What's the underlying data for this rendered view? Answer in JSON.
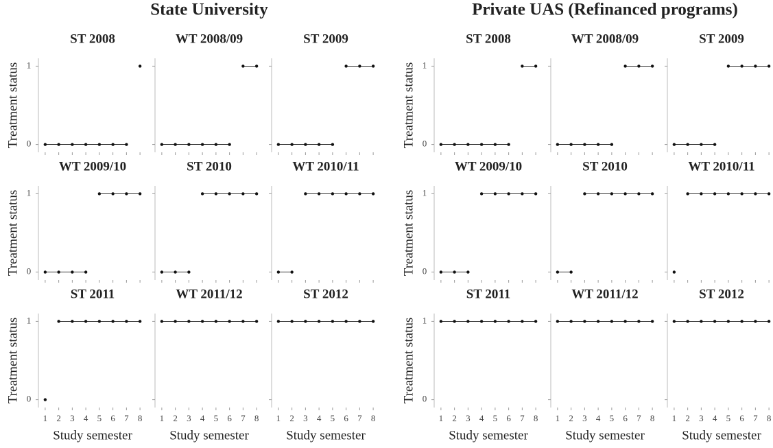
{
  "chart_data": [
    {
      "type": "line",
      "title": "State University",
      "xlabel": "Study semester",
      "ylabel": "Treatment status",
      "x": [
        1,
        2,
        3,
        4,
        5,
        6,
        7,
        8
      ],
      "xlim": [
        0.5,
        8.5
      ],
      "ylim": [
        -0.1,
        1.1
      ],
      "xticks": [
        1,
        2,
        3,
        4,
        5,
        6,
        7,
        8
      ],
      "yticks": [
        0,
        1
      ],
      "color": "#111",
      "panels": [
        {
          "title": "ST 2008",
          "values": [
            0,
            0,
            0,
            0,
            0,
            0,
            0,
            1
          ]
        },
        {
          "title": "WT 2008/09",
          "values": [
            0,
            0,
            0,
            0,
            0,
            0,
            1,
            1
          ]
        },
        {
          "title": "ST 2009",
          "values": [
            0,
            0,
            0,
            0,
            0,
            1,
            1,
            1
          ]
        },
        {
          "title": "WT 2009/10",
          "values": [
            0,
            0,
            0,
            0,
            1,
            1,
            1,
            1
          ]
        },
        {
          "title": "ST 2010",
          "values": [
            0,
            0,
            0,
            1,
            1,
            1,
            1,
            1
          ]
        },
        {
          "title": "WT 2010/11",
          "values": [
            0,
            0,
            1,
            1,
            1,
            1,
            1,
            1
          ]
        },
        {
          "title": "ST 2011",
          "values": [
            0,
            1,
            1,
            1,
            1,
            1,
            1,
            1
          ]
        },
        {
          "title": "WT 2011/12",
          "values": [
            1,
            1,
            1,
            1,
            1,
            1,
            1,
            1
          ]
        },
        {
          "title": "ST 2012",
          "values": [
            1,
            1,
            1,
            1,
            1,
            1,
            1,
            1
          ]
        }
      ]
    },
    {
      "type": "line",
      "title": "Private UAS (Refinanced programs)",
      "xlabel": "Study semester",
      "ylabel": "Treatment status",
      "x": [
        1,
        2,
        3,
        4,
        5,
        6,
        7,
        8
      ],
      "xlim": [
        0.5,
        8.5
      ],
      "ylim": [
        -0.1,
        1.1
      ],
      "xticks": [
        1,
        2,
        3,
        4,
        5,
        6,
        7,
        8
      ],
      "yticks": [
        0,
        1
      ],
      "color": "#111",
      "panels": [
        {
          "title": "ST 2008",
          "values": [
            0,
            0,
            0,
            0,
            0,
            0,
            1,
            1
          ]
        },
        {
          "title": "WT 2008/09",
          "values": [
            0,
            0,
            0,
            0,
            0,
            1,
            1,
            1
          ]
        },
        {
          "title": "ST 2009",
          "values": [
            0,
            0,
            0,
            0,
            1,
            1,
            1,
            1
          ]
        },
        {
          "title": "WT 2009/10",
          "values": [
            0,
            0,
            0,
            1,
            1,
            1,
            1,
            1
          ]
        },
        {
          "title": "ST 2010",
          "values": [
            0,
            0,
            1,
            1,
            1,
            1,
            1,
            1
          ]
        },
        {
          "title": "WT 2010/11",
          "values": [
            0,
            1,
            1,
            1,
            1,
            1,
            1,
            1
          ]
        },
        {
          "title": "ST 2011",
          "values": [
            1,
            1,
            1,
            1,
            1,
            1,
            1,
            1
          ]
        },
        {
          "title": "WT 2011/12",
          "values": [
            1,
            1,
            1,
            1,
            1,
            1,
            1,
            1
          ]
        },
        {
          "title": "ST 2012",
          "values": [
            1,
            1,
            1,
            1,
            1,
            1,
            1,
            1
          ]
        }
      ]
    }
  ]
}
